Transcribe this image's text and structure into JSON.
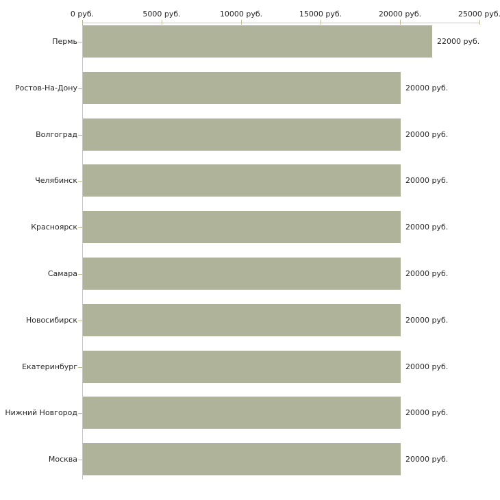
{
  "chart_data": {
    "type": "bar",
    "orientation": "horizontal",
    "title": "",
    "xlabel": "",
    "ylabel": "",
    "xlim": [
      0,
      25000
    ],
    "grid": false,
    "legend": null,
    "unit_suffix": " руб.",
    "categories": [
      "Пермь",
      "Ростов-На-Дону",
      "Волгоград",
      "Челябинск",
      "Красноярск",
      "Самара",
      "Новосибирск",
      "Екатеринбург",
      "Нижний Новгород",
      "Москва"
    ],
    "values": [
      22000,
      20000,
      20000,
      20000,
      20000,
      20000,
      20000,
      20000,
      20000,
      20000
    ],
    "value_labels": [
      "22000 руб.",
      "20000 руб.",
      "20000 руб.",
      "20000 руб.",
      "20000 руб.",
      "20000 руб.",
      "20000 руб.",
      "20000 руб.",
      "20000 руб.",
      "20000 руб."
    ],
    "x_ticks": [
      {
        "value": 0,
        "label": "0 руб."
      },
      {
        "value": 5000,
        "label": "5000 руб."
      },
      {
        "value": 10000,
        "label": "10000 руб."
      },
      {
        "value": 15000,
        "label": "15000 руб."
      },
      {
        "value": 20000,
        "label": "20000 руб."
      },
      {
        "value": 25000,
        "label": "25000 руб."
      }
    ],
    "colors": {
      "bar": "#aeb399",
      "axis_line": "#c6c6c6",
      "tick_mark": "#bcb98c",
      "text": "#262626",
      "background": "#ffffff"
    }
  }
}
